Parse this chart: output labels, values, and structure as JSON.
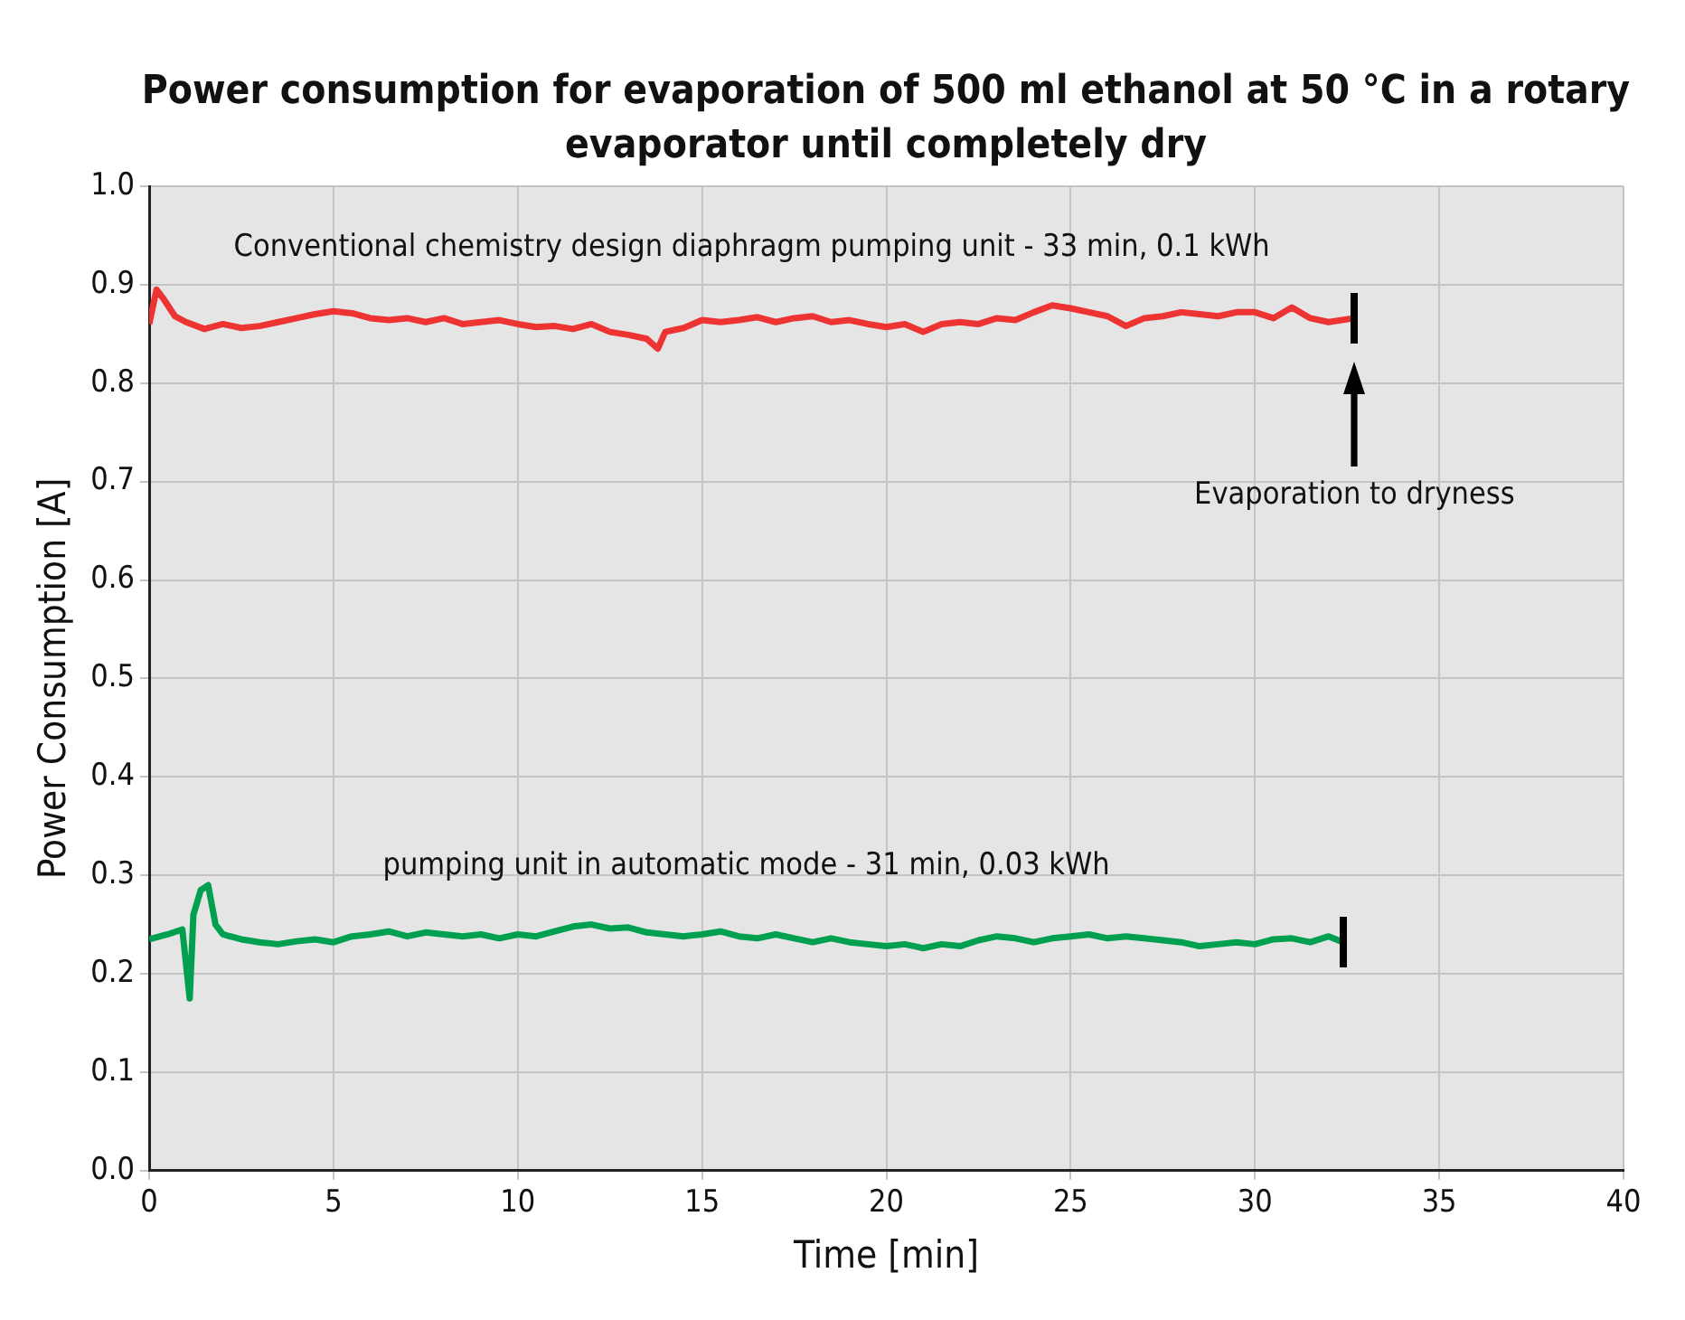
{
  "chart_data": {
    "type": "line",
    "title": "Power consumption for evaporation of 500 ml ethanol at 50 °C in a rotary evaporator until completely dry",
    "xlabel": "Time [min]",
    "ylabel": "Power Consumption [A]",
    "xlim": [
      0,
      40
    ],
    "xticks": [
      0,
      5,
      10,
      15,
      20,
      25,
      30,
      35,
      40
    ],
    "ylim": [
      0,
      1
    ],
    "yticks": [
      {
        "value": 0,
        "label": "0.0"
      },
      {
        "value": 0.1,
        "label": "0.1"
      },
      {
        "value": 0.2,
        "label": "0.2"
      },
      {
        "value": 0.3,
        "label": "0.3"
      },
      {
        "value": 0.4,
        "label": "0.4"
      },
      {
        "value": 0.5,
        "label": "0.5"
      },
      {
        "value": 0.6,
        "label": "0.6"
      },
      {
        "value": 0.7,
        "label": "0.7"
      },
      {
        "value": 0.8,
        "label": "0.8"
      },
      {
        "value": 0.9,
        "label": "0.9"
      },
      {
        "value": 1,
        "label": "1.0"
      }
    ],
    "grid": true,
    "legend": false,
    "marker": "none",
    "line_style": "solid",
    "annotations": [
      "Evaporation to dryness"
    ],
    "series": [
      {
        "name": "Conventional chemistry design diaphragm pumping unit - 33 min, 0.1 kWh",
        "color": "#ee3333",
        "x": [
          0,
          0.2,
          0.4,
          0.7,
          1,
          1.5,
          2,
          2.5,
          3,
          3.5,
          4,
          4.5,
          5,
          5.5,
          6,
          6.5,
          7,
          7.5,
          8,
          8.5,
          9,
          9.5,
          10,
          10.5,
          11,
          11.5,
          12,
          12.5,
          13,
          13.5,
          13.8,
          14,
          14.5,
          15,
          15.5,
          16,
          16.5,
          17,
          17.5,
          18,
          18.5,
          19,
          19.5,
          20,
          20.5,
          21,
          21.5,
          22,
          22.5,
          23,
          23.5,
          24,
          24.5,
          25,
          25.5,
          26,
          26.5,
          27,
          27.5,
          28,
          28.5,
          29,
          29.5,
          30,
          30.5,
          31,
          31.5,
          32,
          32.7
        ],
        "values": [
          0.86,
          0.895,
          0.885,
          0.868,
          0.862,
          0.855,
          0.86,
          0.856,
          0.858,
          0.862,
          0.866,
          0.87,
          0.873,
          0.871,
          0.866,
          0.864,
          0.866,
          0.862,
          0.866,
          0.86,
          0.862,
          0.864,
          0.86,
          0.857,
          0.858,
          0.855,
          0.86,
          0.852,
          0.849,
          0.845,
          0.835,
          0.852,
          0.856,
          0.864,
          0.862,
          0.864,
          0.867,
          0.862,
          0.866,
          0.868,
          0.862,
          0.864,
          0.86,
          0.857,
          0.86,
          0.852,
          0.86,
          0.862,
          0.86,
          0.866,
          0.864,
          0.872,
          0.879,
          0.876,
          0.872,
          0.868,
          0.858,
          0.866,
          0.868,
          0.872,
          0.87,
          0.868,
          0.872,
          0.872,
          0.866,
          0.877,
          0.866,
          0.862,
          0.866
        ]
      },
      {
        "name": "pumping unit in automatic mode - 31 min, 0.03 kWh",
        "color": "#00a050",
        "x": [
          0,
          0.5,
          0.9,
          1.1,
          1.2,
          1.4,
          1.6,
          1.8,
          2,
          2.5,
          3,
          3.5,
          4,
          4.5,
          5,
          5.5,
          6,
          6.5,
          7,
          7.5,
          8,
          8.5,
          9,
          9.5,
          10,
          10.5,
          11,
          11.5,
          12,
          12.5,
          13,
          13.5,
          14,
          14.5,
          15,
          15.5,
          16,
          16.5,
          17,
          17.5,
          18,
          18.5,
          19,
          19.5,
          20,
          20.5,
          21,
          21.5,
          22,
          22.5,
          23,
          23.5,
          24,
          24.5,
          25,
          25.5,
          26,
          26.5,
          27,
          27.5,
          28,
          28.5,
          29,
          29.5,
          30,
          30.5,
          31,
          31.5,
          32,
          32.4
        ],
        "values": [
          0.235,
          0.24,
          0.245,
          0.175,
          0.26,
          0.285,
          0.29,
          0.25,
          0.24,
          0.235,
          0.232,
          0.23,
          0.233,
          0.235,
          0.232,
          0.238,
          0.24,
          0.243,
          0.238,
          0.242,
          0.24,
          0.238,
          0.24,
          0.236,
          0.24,
          0.238,
          0.243,
          0.248,
          0.25,
          0.246,
          0.247,
          0.242,
          0.24,
          0.238,
          0.24,
          0.243,
          0.238,
          0.236,
          0.24,
          0.236,
          0.232,
          0.236,
          0.232,
          0.23,
          0.228,
          0.23,
          0.226,
          0.23,
          0.228,
          0.234,
          0.238,
          0.236,
          0.232,
          0.236,
          0.238,
          0.24,
          0.236,
          0.238,
          0.236,
          0.234,
          0.232,
          0.228,
          0.23,
          0.232,
          0.23,
          0.235,
          0.236,
          0.232,
          0.238,
          0.232
        ]
      }
    ]
  }
}
